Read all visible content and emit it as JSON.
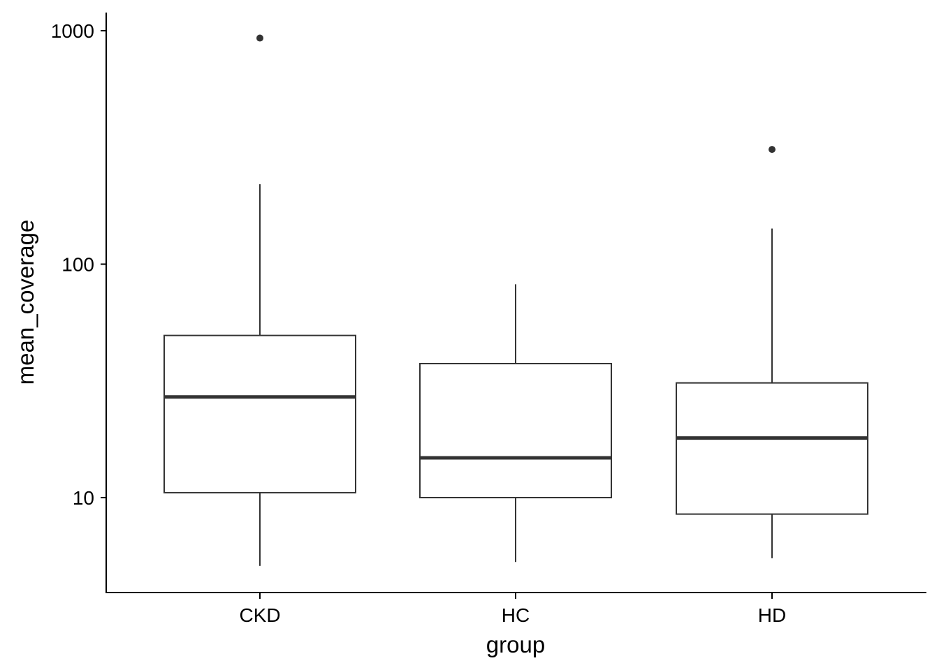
{
  "chart_data": {
    "type": "boxplot",
    "title": "",
    "xlabel": "group",
    "ylabel": "mean_coverage",
    "y_scale": "log10",
    "ylim": [
      4.3,
      1150
    ],
    "yticks": [
      10,
      100,
      1000
    ],
    "ytick_labels": [
      "10",
      "100",
      "1000"
    ],
    "grid": false,
    "legend": "none",
    "categories": [
      "CKD",
      "HC",
      "HD"
    ],
    "boxes": [
      {
        "group": "CKD",
        "whisker_low": 5.1,
        "q1": 10.5,
        "median": 27,
        "q3": 49.5,
        "whisker_high": 220,
        "outliers": [
          930
        ]
      },
      {
        "group": "HC",
        "whisker_low": 5.3,
        "q1": 10.0,
        "median": 14.8,
        "q3": 37.5,
        "whisker_high": 82,
        "outliers": []
      },
      {
        "group": "HD",
        "whisker_low": 5.5,
        "q1": 8.5,
        "median": 18,
        "q3": 31,
        "whisker_high": 142,
        "outliers": [
          310
        ]
      }
    ],
    "colors": {
      "line": "#333333",
      "axis": "#000000",
      "fill": "#ffffff"
    }
  }
}
